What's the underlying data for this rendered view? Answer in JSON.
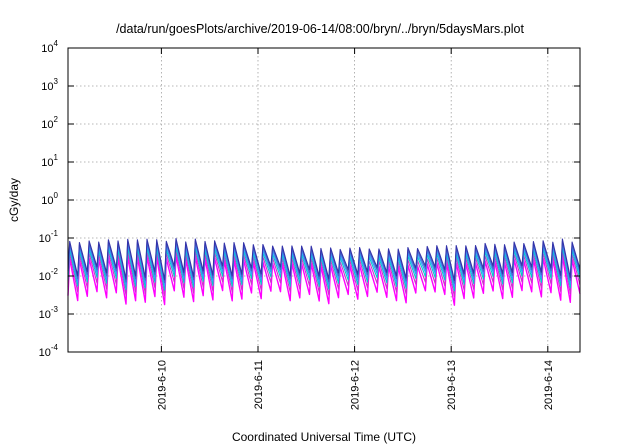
{
  "chart_data": {
    "type": "line",
    "title": "/data/run/goesPlots/archive/2019-06-14/08:00/bryn/../bryn/5daysMars.plot",
    "xlabel": "Coordinated Universal Time (UTC)",
    "ylabel": "cGy/day",
    "yscale": "log",
    "ylim_exponent": [
      -4,
      4
    ],
    "y_ticks": [
      {
        "base": "10",
        "exp": "-4",
        "value": 0.0001
      },
      {
        "base": "10",
        "exp": "-3",
        "value": 0.001
      },
      {
        "base": "10",
        "exp": "-2",
        "value": 0.01
      },
      {
        "base": "10",
        "exp": "-1",
        "value": 0.1
      },
      {
        "base": "10",
        "exp": "0",
        "value": 1
      },
      {
        "base": "10",
        "exp": "1",
        "value": 10
      },
      {
        "base": "10",
        "exp": "2",
        "value": 100
      },
      {
        "base": "10",
        "exp": "3",
        "value": 1000
      },
      {
        "base": "10",
        "exp": "4",
        "value": 10000
      }
    ],
    "xlim_days": [
      "2019-06-09 00:48",
      "2019-06-14 08:00"
    ],
    "x_ticks": [
      "2019-6-10",
      "2019-6-11",
      "2019-6-12",
      "2019-6-13",
      "2019-6-14"
    ],
    "grid": true,
    "legend": "none",
    "series_colors": [
      "#ff00ff",
      "#cc33cc",
      "#00cccc",
      "#3399ff",
      "#4466cc",
      "#3333aa"
    ],
    "pattern": {
      "description_free": true,
      "teeth_per_day": 10,
      "peak_range": [
        0.03,
        0.1
      ],
      "trough_range": [
        0.0008,
        0.005
      ]
    }
  }
}
